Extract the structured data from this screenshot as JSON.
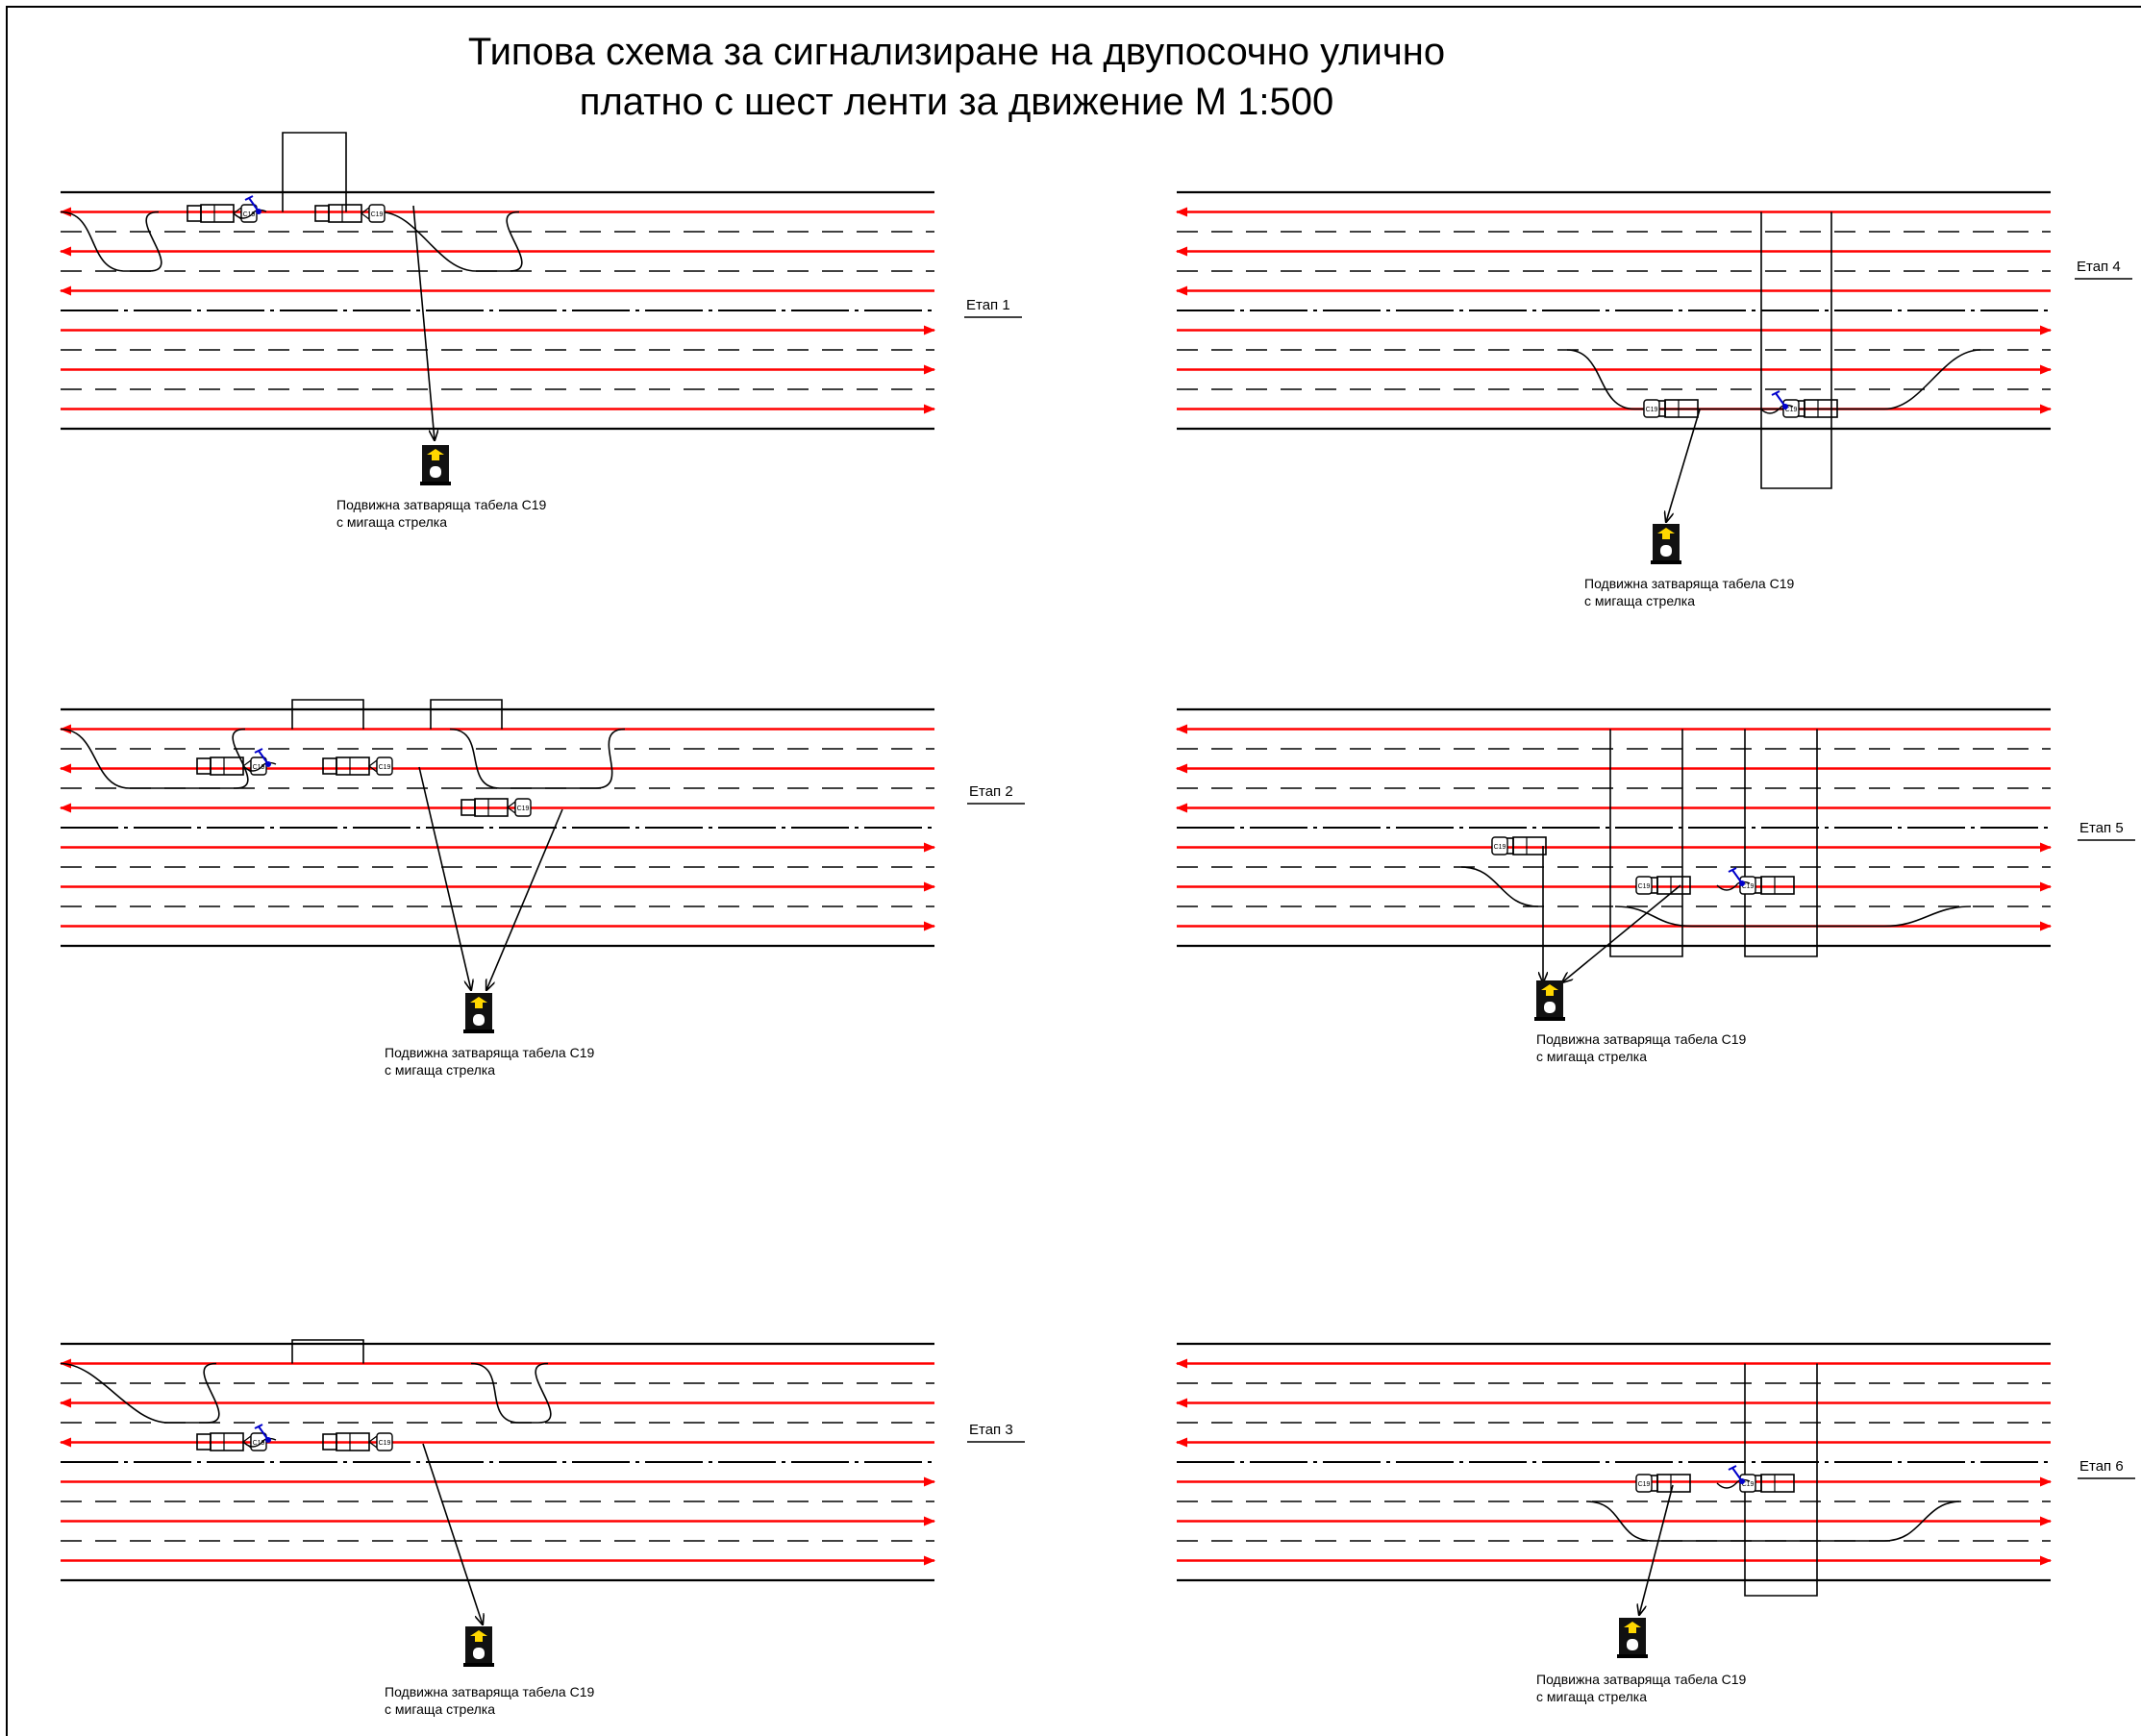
{
  "title": {
    "line1": "Типова схема за сигнализиране на двупосочно улично",
    "line2": "платно с шест ленти за движение М 1:500"
  },
  "colors": {
    "traffic_arrow": "#ff0000",
    "road_line": "#000000",
    "worker": "#0000cc",
    "sign_face": "#111111",
    "sign_arrow": "#ffd700"
  },
  "sign_code": "С19",
  "panels": [
    {
      "id": "stage-1",
      "label": "Етап 1",
      "caption_line1": "Подвижна затваряща табела С19",
      "caption_line2": "с мигаща стрелка"
    },
    {
      "id": "stage-2",
      "label": "Етап 2",
      "caption_line1": "Подвижна затваряща табела С19",
      "caption_line2": "с мигаща стрелка"
    },
    {
      "id": "stage-3",
      "label": "Етап 3",
      "caption_line1": "Подвижна затваряща табела С19",
      "caption_line2": "с мигаща стрелка"
    },
    {
      "id": "stage-4",
      "label": "Етап 4",
      "caption_line1": "Подвижна затваряща табела С19",
      "caption_line2": "с мигаща стрелка"
    },
    {
      "id": "stage-5",
      "label": "Етап 5",
      "caption_line1": "Подвижна затваряща табела С19",
      "caption_line2": "с мигаща стрелка"
    },
    {
      "id": "stage-6",
      "label": "Етап 6",
      "caption_line1": "Подвижна затваряща табела С19",
      "caption_line2": "с мигаща стрелка"
    }
  ]
}
